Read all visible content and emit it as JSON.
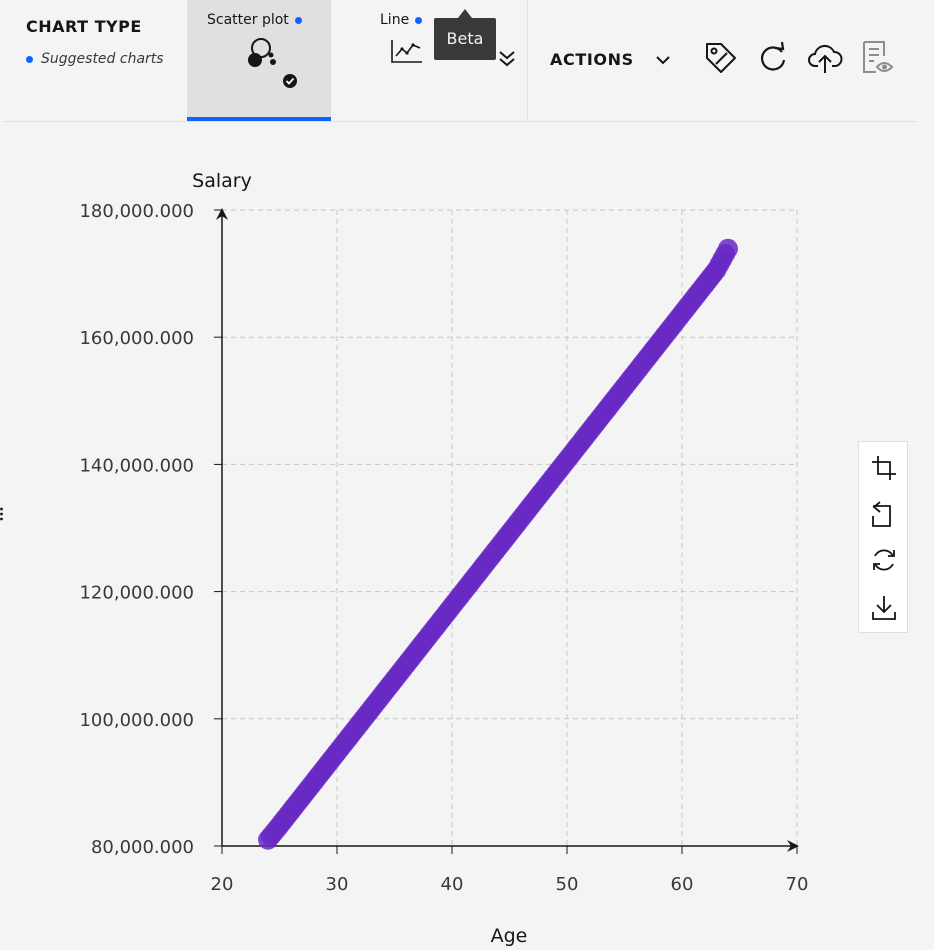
{
  "chart_type": {
    "title": "CHART TYPE",
    "subtitle": "Suggested charts"
  },
  "tabs": [
    {
      "label": "Scatter plot",
      "selected": true
    },
    {
      "label": "Line",
      "selected": false
    }
  ],
  "tooltip": {
    "text": "Beta"
  },
  "actions": {
    "label": "ACTIONS"
  },
  "colors": {
    "accent": "#0f62fe",
    "points": "#6929c4"
  },
  "chart_data": {
    "type": "scatter",
    "xlabel": "Age",
    "ylabel": "Salary",
    "xlim": [
      20,
      70
    ],
    "ylim": [
      80000,
      180000
    ],
    "xticks": [
      "20",
      "30",
      "40",
      "50",
      "60",
      "70"
    ],
    "yticks": [
      "80,000.000",
      "100,000.000",
      "120,000.000",
      "140,000.000",
      "160,000.000",
      "180,000.000"
    ],
    "grid": true,
    "series": [
      {
        "x": [
          24,
          25,
          26,
          27,
          28,
          29,
          30,
          31,
          32,
          33,
          34,
          35,
          36,
          37,
          38,
          39,
          40,
          41,
          42,
          43,
          44,
          45,
          46,
          47,
          48,
          49,
          50,
          51,
          52,
          53,
          54,
          55,
          56,
          57,
          58,
          59,
          60,
          61,
          62,
          63,
          64
        ],
        "y": [
          81000,
          83200,
          85500,
          87800,
          90100,
          92400,
          94700,
          97000,
          99300,
          101600,
          103900,
          106200,
          108500,
          110800,
          113100,
          115400,
          117700,
          120000,
          122300,
          124600,
          126900,
          129200,
          131500,
          133800,
          136100,
          138400,
          140700,
          143000,
          145300,
          147600,
          149900,
          152200,
          154500,
          156800,
          159100,
          161400,
          163700,
          166000,
          168300,
          170600,
          173900
        ]
      }
    ]
  }
}
